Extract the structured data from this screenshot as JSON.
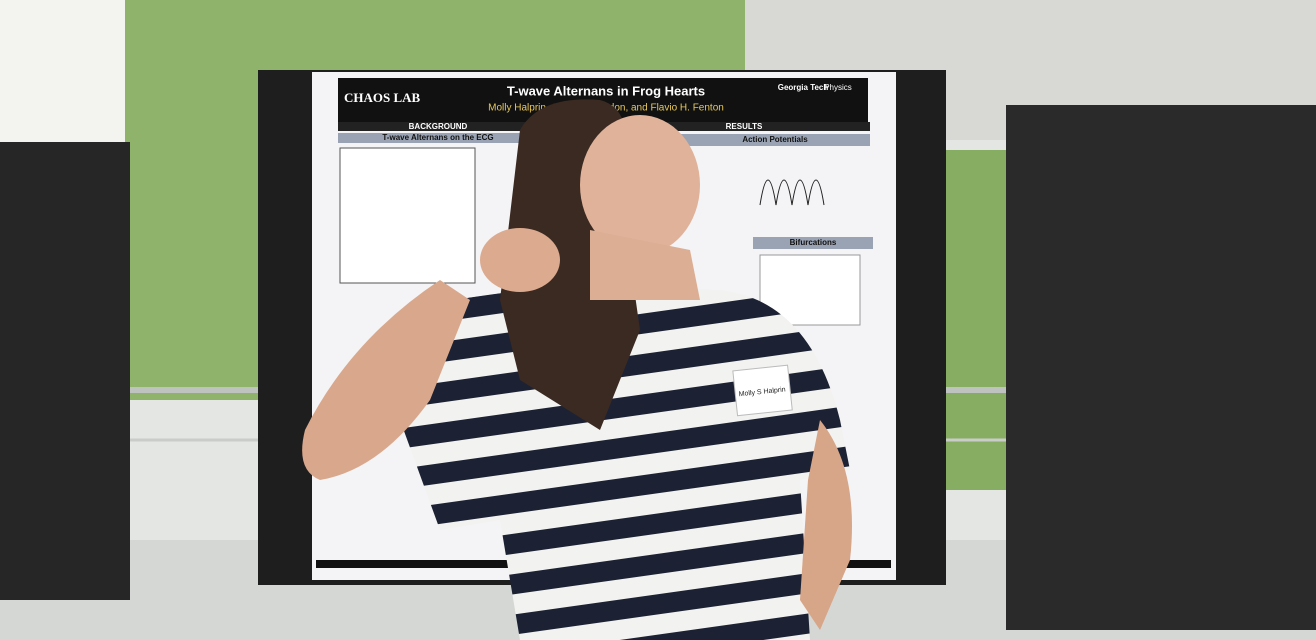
{
  "poster": {
    "lab": "CHAOS LAB",
    "title": "T-wave Alternans in Frog Hearts",
    "authors": "Molly Halprin, Conner Herndon, and Flavio H. Fenton",
    "sections": [
      "BACKGROUND",
      "RESULTS"
    ],
    "subheads": [
      "T-wave Alternans on the ECG",
      "Action Potentials",
      "Bifurcations"
    ],
    "logo": [
      "Georgia Tech",
      "Physics"
    ]
  },
  "name_tag": {
    "name": "Molly S Halprin"
  }
}
